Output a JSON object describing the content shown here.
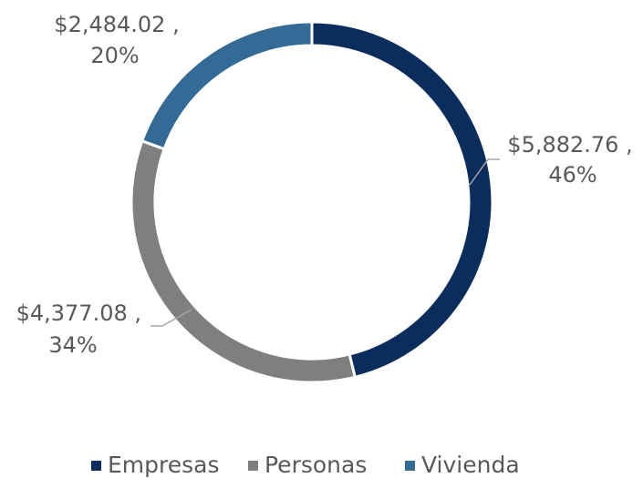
{
  "chart_data": {
    "type": "donut",
    "categories": [
      "Empresas",
      "Personas",
      "Vivienda"
    ],
    "values": [
      5882.76,
      4377.08,
      2484.02
    ],
    "value_labels": [
      [
        "$5,882.76 ,",
        "46%"
      ],
      [
        "$4,377.08 ,",
        "34%"
      ],
      [
        "$2,484.02 ,",
        "20%"
      ]
    ],
    "colors": [
      "#0b2d5e",
      "#7f7f7f",
      "#336a96"
    ],
    "legend": "bottom"
  }
}
